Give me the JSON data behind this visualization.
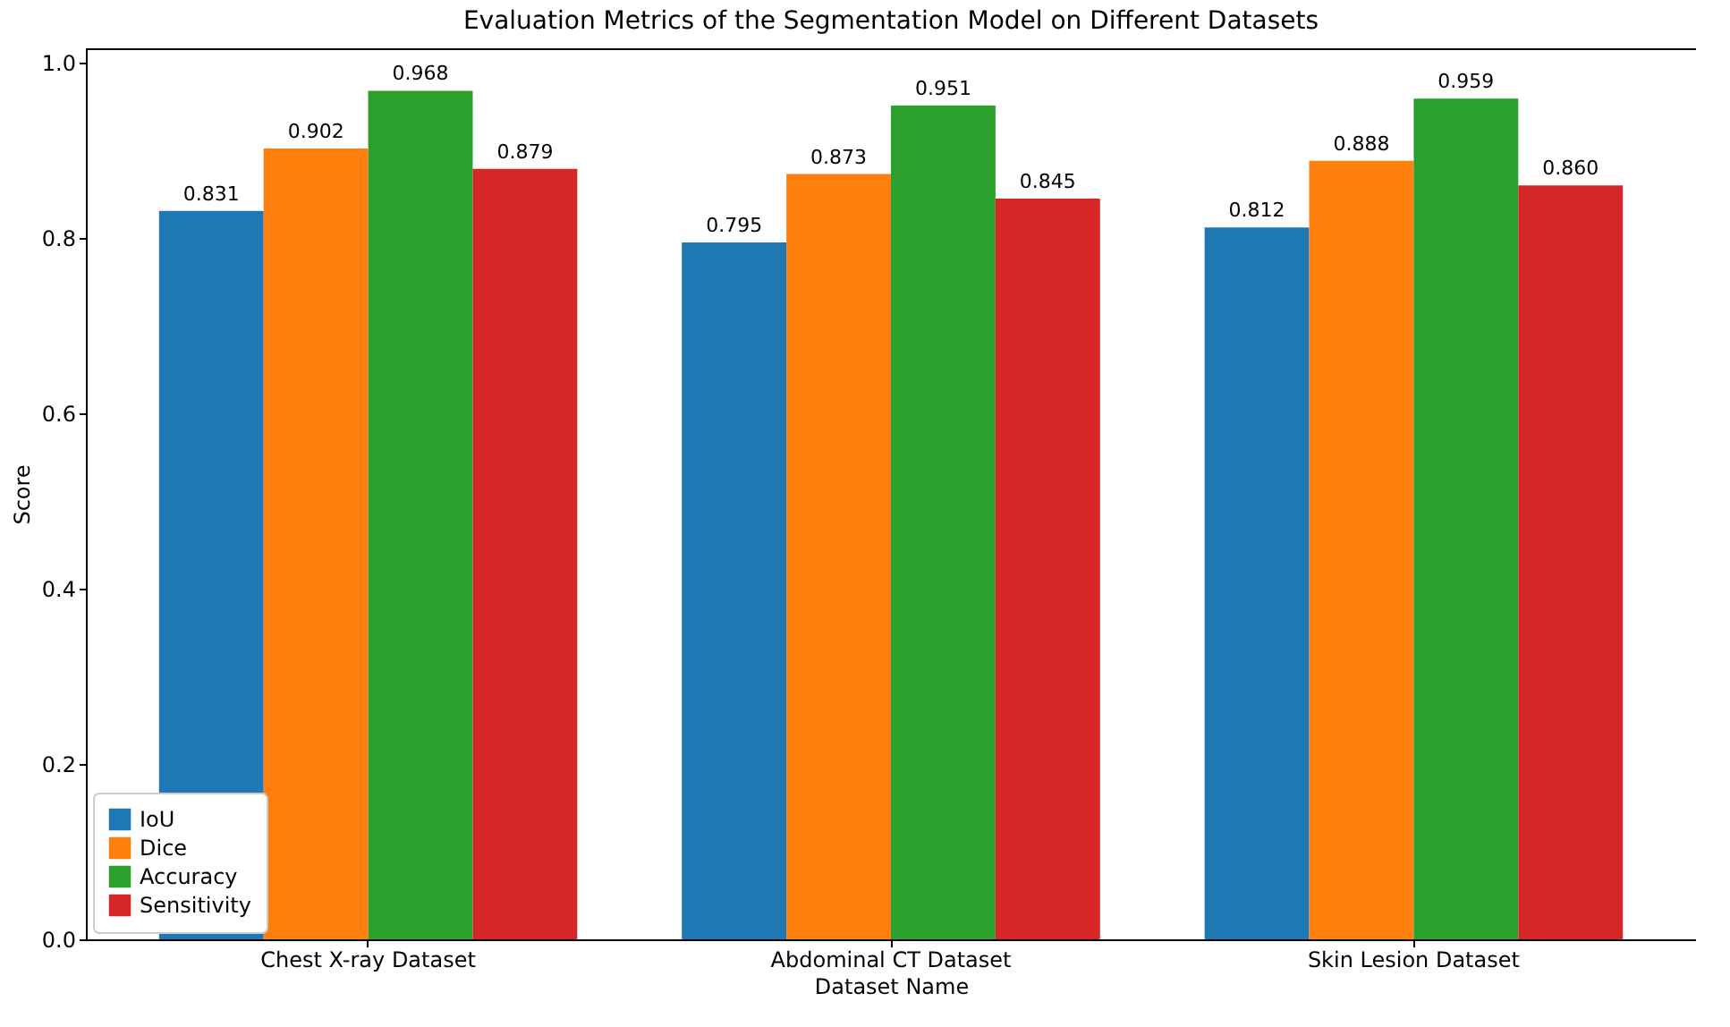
{
  "chart_data": {
    "type": "bar",
    "title": "Evaluation Metrics of the Segmentation Model on Different Datasets",
    "xlabel": "Dataset Name",
    "ylabel": "Score",
    "categories": [
      "Chest X-ray Dataset",
      "Abdominal CT Dataset",
      "Skin Lesion Dataset"
    ],
    "series": [
      {
        "name": "IoU",
        "color": "#1f77b4",
        "values": [
          0.831,
          0.795,
          0.812
        ],
        "value_labels": [
          "0.831",
          "0.795",
          "0.812"
        ]
      },
      {
        "name": "Dice",
        "color": "#ff7f0e",
        "values": [
          0.902,
          0.873,
          0.888
        ],
        "value_labels": [
          "0.902",
          "0.873",
          "0.888"
        ]
      },
      {
        "name": "Accuracy",
        "color": "#2ca02c",
        "values": [
          0.968,
          0.951,
          0.959
        ],
        "value_labels": [
          "0.968",
          "0.951",
          "0.959"
        ]
      },
      {
        "name": "Sensitivity",
        "color": "#d62728",
        "values": [
          0.879,
          0.845,
          0.86
        ],
        "value_labels": [
          "0.879",
          "0.845",
          "0.860"
        ]
      }
    ],
    "ylim": [
      0,
      1.0164
    ],
    "yticks": [
      {
        "value": 0,
        "label": "0.0"
      },
      {
        "value": 0.2,
        "label": "0.2"
      },
      {
        "value": 0.4,
        "label": "0.4"
      },
      {
        "value": 0.6,
        "label": "0.6"
      },
      {
        "value": 0.8,
        "label": "0.8"
      },
      {
        "value": 1,
        "label": "1.0"
      }
    ],
    "grid": false,
    "legend": "bottom left"
  }
}
